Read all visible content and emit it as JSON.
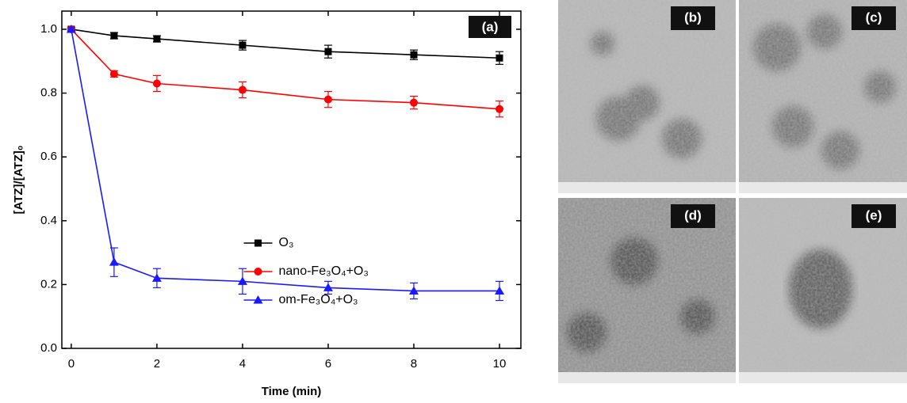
{
  "chart_data": {
    "type": "line",
    "xlabel": "Time (min)",
    "ylabel": "[ATZ]/[ATZ]₀",
    "x": [
      0,
      1,
      2,
      4,
      6,
      8,
      10
    ],
    "series": [
      {
        "name": "O₃",
        "color": "#000000",
        "marker": "square",
        "values": [
          1.0,
          0.98,
          0.97,
          0.95,
          0.93,
          0.92,
          0.91
        ],
        "errors": [
          0.005,
          0.01,
          0.01,
          0.015,
          0.02,
          0.015,
          0.02
        ]
      },
      {
        "name": "nano-Fe₃O₄+O₃",
        "color": "#ff0000",
        "marker": "circle",
        "values": [
          1.0,
          0.86,
          0.83,
          0.81,
          0.78,
          0.77,
          0.75
        ],
        "errors": [
          0.005,
          0.01,
          0.025,
          0.025,
          0.025,
          0.02,
          0.025
        ]
      },
      {
        "name": "om-Fe₃O₄+O₃",
        "color": "#1a1aff",
        "marker": "triangle",
        "values": [
          1.0,
          0.27,
          0.22,
          0.21,
          0.19,
          0.18,
          0.18
        ],
        "errors": [
          0.005,
          0.045,
          0.03,
          0.04,
          0.02,
          0.025,
          0.03
        ]
      }
    ],
    "xlim": [
      -0.22,
      10.5
    ],
    "ylim": [
      0,
      1.057
    ],
    "xticks": [
      0,
      2,
      4,
      6,
      8,
      10
    ],
    "yticks": [
      {
        "value": 0,
        "label": "0.0"
      },
      0.2,
      0.4,
      0.6,
      0.8,
      {
        "value": 1,
        "label": "1.0"
      }
    ],
    "legend": "center",
    "panel_label": "(a)"
  },
  "panels": [
    "(b)",
    "(c)",
    "(d)",
    "(e)"
  ]
}
